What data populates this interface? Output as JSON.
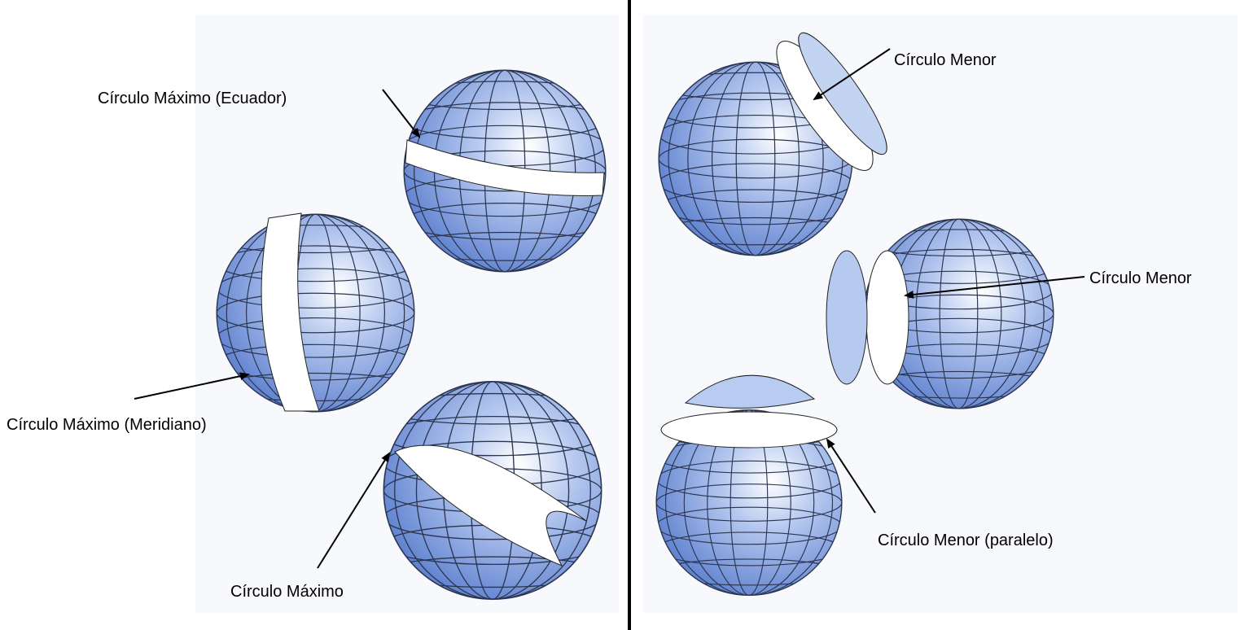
{
  "labels": [
    "Círculo Máximo (Ecuador)",
    "Círculo Máximo (Meridiano)",
    "Círculo Máximo",
    "Círculo Menor",
    "Círculo Menor",
    "Círculo Menor (paralelo)"
  ]
}
